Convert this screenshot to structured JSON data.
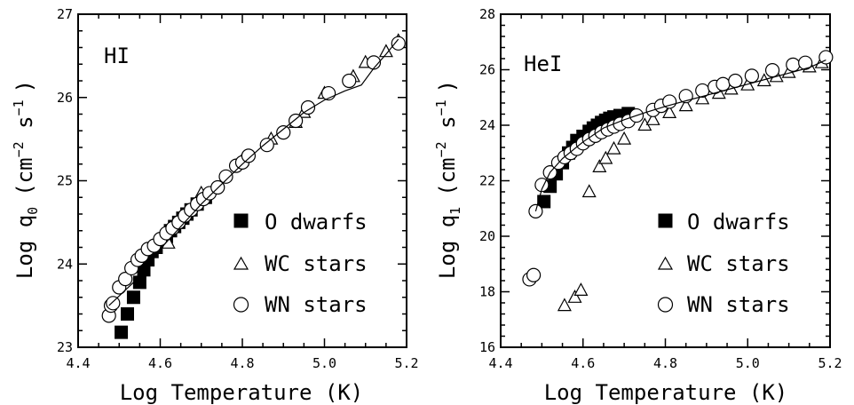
{
  "chart_data": [
    {
      "type": "scatter",
      "panel_label": "HI",
      "xlabel": "Log Temperature (K)",
      "ylabel_main": "Log q",
      "ylabel_sub": "0",
      "ylabel_unit": "(cm",
      "ylabel_exp1": "−2",
      "ylabel_mid": " s",
      "ylabel_exp2": "−1",
      "ylabel_close": ")",
      "xlim": [
        4.4,
        5.2
      ],
      "ylim": [
        23,
        27
      ],
      "xticks": [
        4.4,
        4.6,
        4.8,
        5.0,
        5.2
      ],
      "xtick_labels": [
        "4.4",
        "4.6",
        "4.8",
        "5.0",
        "5.2"
      ],
      "yticks": [
        23,
        24,
        25,
        26,
        27
      ],
      "ytick_labels": [
        "23",
        "24",
        "25",
        "26",
        "27"
      ],
      "legend_position": "bottom-right",
      "series": [
        {
          "name": "O dwarfs",
          "marker": "filled-square",
          "x": [
            4.505,
            4.52,
            4.535,
            4.55,
            4.56,
            4.57,
            4.58,
            4.59,
            4.605,
            4.615,
            4.625,
            4.635,
            4.645,
            4.655,
            4.665,
            4.675,
            4.69,
            4.71
          ],
          "y": [
            23.18,
            23.4,
            23.6,
            23.78,
            23.93,
            24.05,
            24.15,
            24.2,
            24.27,
            24.33,
            24.4,
            24.45,
            24.5,
            24.55,
            24.6,
            24.65,
            24.72,
            24.8
          ]
        },
        {
          "name": "WC stars",
          "marker": "open-triangle",
          "x": [
            4.62,
            4.7,
            4.8,
            4.87,
            4.93,
            4.95,
            5.0,
            5.07,
            5.1,
            5.15,
            5.18
          ],
          "y": [
            24.25,
            24.85,
            25.25,
            25.5,
            25.7,
            25.82,
            26.05,
            26.25,
            26.42,
            26.55,
            26.68
          ]
        },
        {
          "name": "WN stars",
          "marker": "open-circle",
          "x": [
            4.475,
            4.48,
            4.485,
            4.5,
            4.515,
            4.53,
            4.545,
            4.555,
            4.57,
            4.585,
            4.6,
            4.615,
            4.63,
            4.645,
            4.66,
            4.675,
            4.69,
            4.705,
            4.72,
            4.74,
            4.76,
            4.785,
            4.8,
            4.815,
            4.86,
            4.9,
            4.93,
            4.96,
            5.01,
            5.06,
            5.12,
            5.18
          ],
          "y": [
            23.38,
            23.5,
            23.53,
            23.72,
            23.82,
            23.95,
            24.05,
            24.1,
            24.18,
            24.22,
            24.3,
            24.37,
            24.43,
            24.5,
            24.58,
            24.65,
            24.72,
            24.78,
            24.85,
            24.92,
            25.05,
            25.18,
            25.22,
            25.3,
            25.43,
            25.58,
            25.72,
            25.88,
            26.05,
            26.2,
            26.42,
            26.65
          ]
        },
        {
          "name": "",
          "marker": "line",
          "x": [
            4.475,
            4.55,
            4.6,
            4.65,
            4.7,
            4.75,
            4.8,
            4.85,
            4.9,
            4.95,
            5.0,
            5.05,
            5.09,
            5.12,
            5.15,
            5.18
          ],
          "y": [
            23.5,
            23.85,
            24.18,
            24.45,
            24.72,
            24.96,
            25.2,
            25.42,
            25.62,
            25.82,
            25.97,
            26.08,
            26.15,
            26.35,
            26.52,
            26.7
          ]
        }
      ]
    },
    {
      "type": "scatter",
      "panel_label": "HeI",
      "xlabel": "Log Temperature (K)",
      "ylabel_main": "Log q",
      "ylabel_sub": "1",
      "ylabel_unit": "(cm",
      "ylabel_exp1": "−2",
      "ylabel_mid": " s",
      "ylabel_exp2": "−1",
      "ylabel_close": ")",
      "xlim": [
        4.4,
        5.2
      ],
      "ylim": [
        16,
        28
      ],
      "xticks": [
        4.4,
        4.6,
        4.8,
        5.0,
        5.2
      ],
      "xtick_labels": [
        "4.4",
        "4.6",
        "4.8",
        "5.0",
        "5.2"
      ],
      "yticks": [
        16,
        18,
        20,
        22,
        24,
        26,
        28
      ],
      "ytick_labels": [
        "16",
        "18",
        "20",
        "22",
        "24",
        "26",
        "28"
      ],
      "legend_position": "bottom-right",
      "series": [
        {
          "name": "O dwarfs",
          "marker": "filled-square",
          "x": [
            4.505,
            4.52,
            4.535,
            4.55,
            4.565,
            4.575,
            4.585,
            4.6,
            4.615,
            4.625,
            4.635,
            4.645,
            4.655,
            4.665,
            4.675,
            4.69,
            4.71
          ],
          "y": [
            21.25,
            21.8,
            22.25,
            22.65,
            23.0,
            23.2,
            23.45,
            23.6,
            23.78,
            23.9,
            24.0,
            24.1,
            24.18,
            24.25,
            24.3,
            24.35,
            24.42
          ]
        },
        {
          "name": "WC stars",
          "marker": "open-triangle",
          "x": [
            4.555,
            4.58,
            4.595,
            4.615,
            4.64,
            4.655,
            4.675,
            4.7,
            4.75,
            4.77,
            4.81,
            4.85,
            4.89,
            4.93,
            4.96,
            5.0,
            5.04,
            5.07,
            5.1,
            5.15,
            5.18
          ],
          "y": [
            17.5,
            17.8,
            18.05,
            21.6,
            22.5,
            22.8,
            23.15,
            23.5,
            24.0,
            24.2,
            24.45,
            24.7,
            24.95,
            25.15,
            25.3,
            25.45,
            25.6,
            25.75,
            25.9,
            26.1,
            26.25
          ]
        },
        {
          "name": "WN stars",
          "marker": "open-circle",
          "x": [
            4.47,
            4.48,
            4.485,
            4.5,
            4.52,
            4.54,
            4.555,
            4.57,
            4.585,
            4.6,
            4.615,
            4.63,
            4.645,
            4.66,
            4.675,
            4.69,
            4.71,
            4.73,
            4.77,
            4.79,
            4.81,
            4.85,
            4.89,
            4.92,
            4.94,
            4.97,
            5.01,
            5.06,
            5.11,
            5.14,
            5.19
          ],
          "y": [
            18.45,
            18.6,
            20.9,
            21.85,
            22.3,
            22.65,
            22.85,
            23.0,
            23.15,
            23.35,
            23.5,
            23.62,
            23.75,
            23.85,
            23.95,
            24.05,
            24.15,
            24.35,
            24.55,
            24.7,
            24.85,
            25.05,
            25.25,
            25.38,
            25.48,
            25.6,
            25.78,
            25.98,
            26.18,
            26.25,
            26.45
          ]
        },
        {
          "name": "",
          "marker": "line",
          "x": [
            4.485,
            4.5,
            4.52,
            4.55,
            4.6,
            4.65,
            4.7,
            4.75,
            4.8,
            4.85,
            4.9,
            4.95,
            5.0,
            5.05,
            5.1,
            5.15,
            5.19
          ],
          "y": [
            20.9,
            21.7,
            22.3,
            22.8,
            23.4,
            23.9,
            24.2,
            24.45,
            24.68,
            24.88,
            25.08,
            25.28,
            25.48,
            25.68,
            25.88,
            26.08,
            26.35
          ]
        }
      ]
    }
  ]
}
